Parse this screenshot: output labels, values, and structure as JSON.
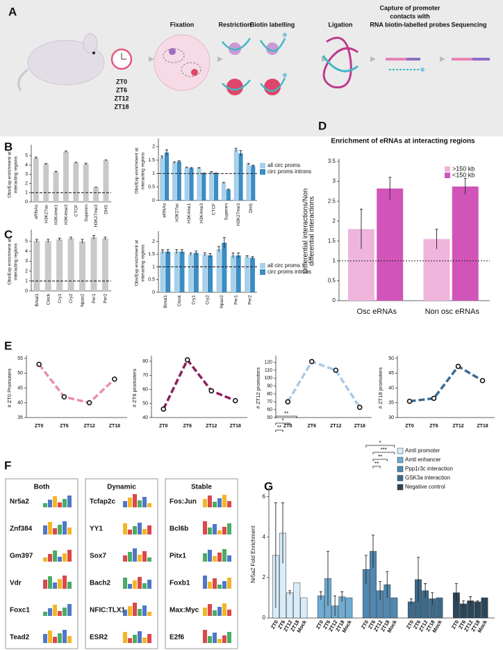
{
  "panels": [
    "A",
    "B",
    "C",
    "D",
    "E",
    "F",
    "G"
  ],
  "schematic": {
    "zt": [
      "ZT0",
      "ZT6",
      "ZT12",
      "ZT18"
    ],
    "steps": [
      "Fixation",
      "Restriction",
      "Biotin labelling",
      "Ligation",
      "Sequencing"
    ],
    "capture": [
      "Capture of promoter",
      "contacts with",
      "RNA biotin-labelled probes"
    ]
  },
  "motifs": [
    {
      "title": "Both",
      "names": [
        "Nr5a2",
        "Znf384",
        "Gm397",
        "Vdr",
        "Foxc1",
        "Tead2"
      ]
    },
    {
      "title": "Dynamic",
      "names": [
        "Tcfap2c",
        "YY1",
        "Sox7",
        "Bach2",
        "NFIC:TLX1",
        "ESR2"
      ]
    },
    {
      "title": "Stable",
      "names": [
        "Fos:Jun",
        "Bcl6b",
        "Pitx1",
        "Foxb1",
        "Max:Myc",
        "E2f6"
      ]
    }
  ],
  "chart_data": [
    {
      "type": "bar",
      "ylabel": [
        "Obs/Exp enrichment at",
        "interacting regions"
      ],
      "categories": [
        "eRNAs",
        "H3K27ac",
        "H3K4me1",
        "H3K4me3",
        "CTCF",
        "Superen",
        "H3K27me3",
        "DHS"
      ],
      "series": [
        {
          "color": "#c9c9c9",
          "values": [
            4.75,
            4.1,
            3.25,
            5.45,
            4.25,
            4.1,
            1.55,
            4.5
          ],
          "errors": [
            0.1,
            0.06,
            0.04,
            0.08,
            0.06,
            0.1,
            0.04,
            0.05
          ]
        }
      ],
      "ylim": [
        0,
        5.9
      ],
      "yticks": [
        0,
        1,
        2,
        3,
        4,
        5
      ],
      "refline": 1
    },
    {
      "type": "bar",
      "ylabel": [
        "Obs/Exp enrichment at",
        "interacting regions"
      ],
      "categories": [
        "eRNAs",
        "H3K27ac",
        "H3K4me1",
        "H3K4me3",
        "CTCF",
        "Superen",
        "H3K27me3",
        "DHS"
      ],
      "series": [
        {
          "name": "all circ proms",
          "color": "#a8d0ea",
          "values": [
            1.6,
            1.4,
            1.22,
            1.2,
            1.05,
            0.65,
            1.88,
            1.35
          ],
          "errors": [
            0.05,
            0.03,
            0.02,
            0.02,
            0.02,
            0.02,
            0.06,
            0.03
          ]
        },
        {
          "name": "circ proms introns",
          "color": "#3b8dc2",
          "values": [
            1.78,
            1.45,
            1.2,
            1.0,
            1.0,
            0.4,
            1.75,
            1.28
          ],
          "errors": [
            0.1,
            0.03,
            0.02,
            0.02,
            0.02,
            0.02,
            0.1,
            0.03
          ]
        }
      ],
      "ylim": [
        0,
        2.2
      ],
      "yticks": [
        0,
        0.5,
        1,
        1.5,
        2
      ],
      "refline": 1
    },
    {
      "type": "bar",
      "ylabel": [
        "Obs/Exp enrichment at",
        "interacting regions"
      ],
      "categories": [
        "Bmal1",
        "Clock",
        "Cry1",
        "Cry2",
        "Npas2",
        "Per1",
        "Per2"
      ],
      "series": [
        {
          "color": "#c9c9c9",
          "values": [
            5.05,
            5.05,
            5.2,
            5.3,
            5.0,
            5.4,
            5.3
          ],
          "errors": [
            0.15,
            0.15,
            0.12,
            0.12,
            0.2,
            0.18,
            0.12
          ]
        }
      ],
      "ylim": [
        0,
        5.9
      ],
      "yticks": [
        0,
        1,
        2,
        3,
        4,
        5
      ],
      "refline": 1
    },
    {
      "type": "bar",
      "ylabel": [
        "Obs/Exp enrichment at",
        "interacting regions"
      ],
      "categories": [
        "Bmal1",
        "Clock",
        "Cry1",
        "Cry2",
        "Npas2",
        "Per1",
        "Per2"
      ],
      "series": [
        {
          "name": "all circ proms",
          "color": "#a8d0ea",
          "values": [
            1.6,
            1.6,
            1.5,
            1.5,
            1.7,
            1.45,
            1.4
          ],
          "errors": [
            0.07,
            0.08,
            0.05,
            0.06,
            0.1,
            0.1,
            0.04
          ]
        },
        {
          "name": "circ proms introns",
          "color": "#3b8dc2",
          "values": [
            1.6,
            1.6,
            1.55,
            1.45,
            1.95,
            1.45,
            1.35
          ],
          "errors": [
            0.08,
            0.08,
            0.07,
            0.07,
            0.2,
            0.1,
            0.05
          ]
        }
      ],
      "ylim": [
        0,
        2.3
      ],
      "yticks": [
        0,
        0.5,
        1,
        1.5,
        2
      ],
      "refline": 1
    },
    {
      "type": "bar",
      "title": "Enrichment of eRNAs at interacting regions",
      "ylabel": [
        "Differential interactions/Non",
        "differential interactions"
      ],
      "categories": [
        "Osc eRNAs",
        "Non osc eRNAs"
      ],
      "series": [
        {
          "name": ">150 kb",
          "color": "#efb5dd",
          "values": [
            1.8,
            1.55
          ],
          "errors": [
            0.5,
            0.25
          ]
        },
        {
          "name": "<150 kb",
          "color": "#d155b8",
          "values": [
            2.82,
            2.87
          ],
          "errors": [
            0.28,
            0.2
          ]
        }
      ],
      "ylim": [
        0,
        3.5
      ],
      "yticks": [
        0,
        0.5,
        1,
        1.5,
        2,
        2.5,
        3,
        3.5
      ],
      "refline": 1
    },
    {
      "type": "line",
      "ylabel": "# ZT0 Promoters",
      "categories": [
        "ZT0",
        "ZT6",
        "ZT12",
        "ZT18"
      ],
      "series": [
        {
          "color": "#ea8cb2",
          "values": [
            53,
            42,
            40,
            48
          ]
        }
      ],
      "ylim": [
        35,
        55
      ],
      "yticks": [
        35,
        40,
        45,
        50,
        55
      ]
    },
    {
      "type": "line",
      "ylabel": "# ZT6 promoters",
      "categories": [
        "ZT0",
        "ZT6",
        "ZT12",
        "ZT18"
      ],
      "series": [
        {
          "color": "#8e1f5b",
          "values": [
            46,
            81,
            59,
            52
          ]
        }
      ],
      "ylim": [
        40,
        82
      ],
      "yticks": [
        40,
        50,
        60,
        70,
        80
      ]
    },
    {
      "type": "line",
      "ylabel": "# ZT12 promoters",
      "categories": [
        "ZT0",
        "ZT6",
        "ZT12",
        "ZT18"
      ],
      "series": [
        {
          "color": "#a9cbe8",
          "values": [
            70,
            121,
            110,
            63
          ]
        }
      ],
      "ylim": [
        50,
        125
      ],
      "yticks": [
        50,
        60,
        70,
        80,
        90,
        100,
        110,
        120
      ]
    },
    {
      "type": "line",
      "ylabel": "# ZT18 promoters",
      "categories": [
        "ZT0",
        "ZT6",
        "ZT12",
        "ZT18"
      ],
      "series": [
        {
          "color": "#3b6a93",
          "values": [
            35.5,
            36.5,
            47.3,
            42.5
          ]
        }
      ],
      "ylim": [
        30,
        50
      ],
      "yticks": [
        30,
        35,
        40,
        45,
        50
      ]
    },
    {
      "type": "bar",
      "ylabel": "Nr5a2 Fold Enrichment",
      "categories": [
        "ZT0",
        "ZT6",
        "ZT12",
        "ZT18",
        "Mock"
      ],
      "series": [
        {
          "name": "Amtl promoter",
          "color": "#d8edf9",
          "values": [
            3.1,
            4.2,
            1.25,
            1.75,
            1.0
          ],
          "errors": [
            2.6,
            1.5,
            0.1,
            0,
            0
          ]
        },
        {
          "name": "Amtl enhancer",
          "color": "#6fabd3",
          "values": [
            1.1,
            1.95,
            0.6,
            1.05,
            1.0
          ],
          "errors": [
            0.2,
            1.35,
            0.5,
            0.25,
            0
          ]
        },
        {
          "name": "Ppp1r3c interaction",
          "color": "#4f88b2",
          "values": [
            2.4,
            3.3,
            1.35,
            1.65,
            1.0
          ],
          "errors": [
            0.7,
            0.8,
            0.45,
            0.65,
            0
          ]
        },
        {
          "name": "GSK3a interaction",
          "color": "#3c6a8b",
          "values": [
            0.8,
            1.9,
            1.35,
            0.95,
            1.0
          ],
          "errors": [
            0.15,
            1.1,
            0.35,
            0.3,
            0
          ]
        },
        {
          "name": "Negative control",
          "color": "#2c4659",
          "values": [
            1.25,
            0.7,
            0.85,
            0.8,
            1.0
          ],
          "errors": [
            0.45,
            0.15,
            0.2,
            0.05,
            0
          ]
        }
      ],
      "ylim": [
        0,
        6.3
      ],
      "yticks": [
        0,
        2,
        4,
        6
      ],
      "annotations": [
        "**",
        "*",
        "**",
        "*",
        "***",
        "**",
        "**"
      ]
    }
  ]
}
